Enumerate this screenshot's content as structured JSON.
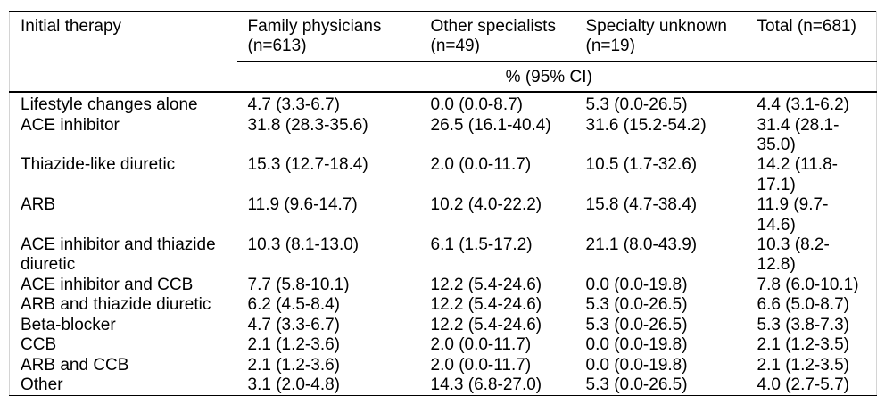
{
  "table": {
    "columns": [
      {
        "label": "Initial therapy"
      },
      {
        "label": "Family physicians (n=613)"
      },
      {
        "label": "Other specialists (n=49)"
      },
      {
        "label": "Specialty unknown (n=19)"
      },
      {
        "label": "Total (n=681)"
      }
    ],
    "subheader": "% (95% CI)",
    "rows": [
      [
        "Lifestyle changes alone",
        "4.7 (3.3-6.7)",
        "0.0 (0.0-8.7)",
        "5.3 (0.0-26.5)",
        "4.4 (3.1-6.2)"
      ],
      [
        "ACE inhibitor",
        "31.8 (28.3-35.6)",
        "26.5 (16.1-40.4)",
        "31.6 (15.2-54.2)",
        "31.4 (28.1-35.0)"
      ],
      [
        "Thiazide-like diuretic",
        "15.3 (12.7-18.4)",
        "2.0 (0.0-11.7)",
        "10.5 (1.7-32.6)",
        "14.2 (11.8-17.1)"
      ],
      [
        "ARB",
        "11.9 (9.6-14.7)",
        "10.2 (4.0-22.2)",
        "15.8 (4.7-38.4)",
        "11.9 (9.7-14.6)"
      ],
      [
        "ACE inhibitor and thiazide diuretic",
        "10.3 (8.1-13.0)",
        "6.1 (1.5-17.2)",
        "21.1 (8.0-43.9)",
        "10.3 (8.2-12.8)"
      ],
      [
        "ACE inhibitor and CCB",
        "7.7 (5.8-10.1)",
        "12.2 (5.4-24.6)",
        "0.0 (0.0-19.8)",
        "7.8 (6.0-10.1)"
      ],
      [
        "ARB and thiazide diuretic",
        "6.2 (4.5-8.4)",
        "12.2 (5.4-24.6)",
        "5.3 (0.0-26.5)",
        "6.6 (5.0-8.7)"
      ],
      [
        "Beta-blocker",
        "4.7 (3.3-6.7)",
        "12.2 (5.4-24.6)",
        "5.3 (0.0-26.5)",
        "5.3 (3.8-7.3)"
      ],
      [
        "CCB",
        "2.1 (1.2-3.6)",
        "2.0 (0.0-11.7)",
        "0.0 (0.0-19.8)",
        "2.1 (1.2-3.5)"
      ],
      [
        "ARB and CCB",
        "2.1 (1.2-3.6)",
        "2.0 (0.0-11.7)",
        "0.0 (0.0-19.8)",
        "2.1 (1.2-3.5)"
      ],
      [
        "Other",
        "3.1 (2.0-4.8)",
        "14.3 (6.8-27.0)",
        "5.3 (0.0-26.5)",
        "4.0 (2.7-5.7)"
      ]
    ]
  },
  "colors": {
    "text": "#000000",
    "background": "#ffffff",
    "horizontal_rule": "#000000",
    "side_border": "#d4d4d4"
  }
}
